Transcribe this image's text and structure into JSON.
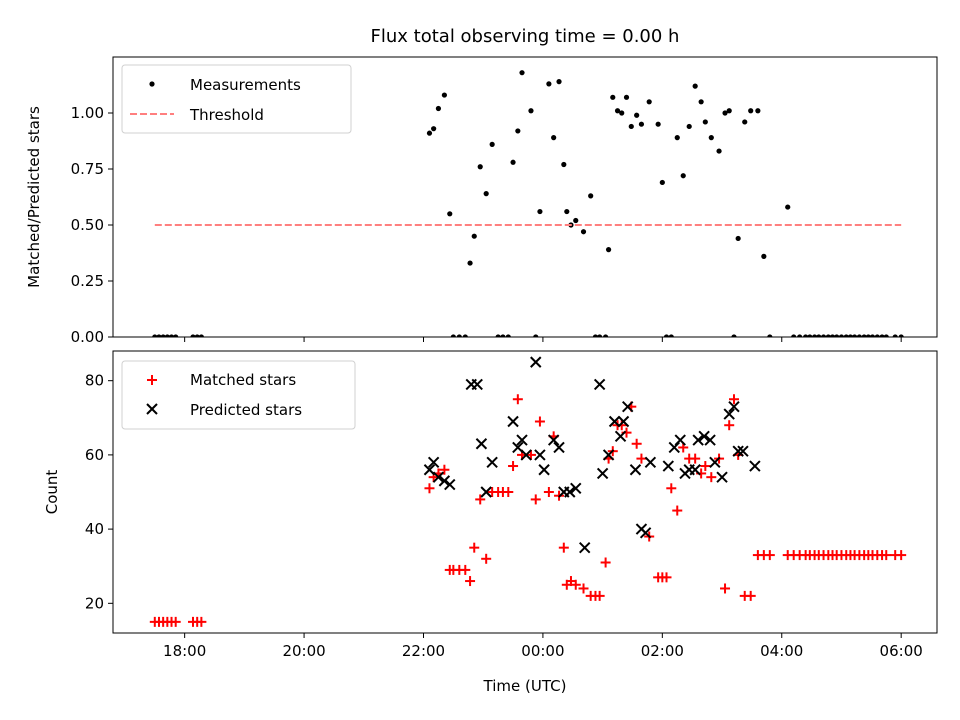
{
  "chart_data": [
    {
      "type": "scatter",
      "title": "Flux total observing time = 0.00 h",
      "xlabel": "",
      "ylabel": "Matched/Predicted stars",
      "xlim": [
        -7.2,
        6.6
      ],
      "ylim": [
        0,
        1.25
      ],
      "x_ticks": [
        -6,
        -4,
        -2,
        0,
        2,
        4,
        6
      ],
      "y_ticks": [
        {
          "value": 0,
          "label": "0.00"
        },
        {
          "value": 0.25,
          "label": "0.25"
        },
        {
          "value": 0.5,
          "label": "0.50"
        },
        {
          "value": 0.75,
          "label": "0.75"
        },
        {
          "value": 1.0,
          "label": "1.00"
        }
      ],
      "legend": "upper-left",
      "series": [
        {
          "name": "Measurements",
          "marker": "dot",
          "color": "#000000",
          "x": [
            -6.5,
            -6.43,
            -6.36,
            -6.29,
            -6.22,
            -6.15,
            -5.86,
            -5.79,
            -5.72,
            -1.9,
            -1.83,
            -1.75,
            -1.65,
            -1.56,
            -1.5,
            -1.4,
            -1.3,
            -1.22,
            -1.15,
            -1.05,
            -0.95,
            -0.85,
            -0.75,
            -0.67,
            -0.58,
            -0.5,
            -0.42,
            -0.35,
            -0.2,
            -0.12,
            -0.05,
            0.1,
            0.18,
            0.27,
            0.35,
            0.4,
            0.47,
            0.55,
            0.68,
            0.8,
            0.88,
            0.95,
            1.05,
            1.1,
            1.17,
            1.25,
            1.32,
            1.4,
            1.48,
            1.57,
            1.65,
            1.78,
            1.93,
            2.0,
            2.07,
            2.15,
            2.25,
            2.35,
            2.45,
            2.55,
            2.65,
            2.72,
            2.82,
            2.95,
            3.05,
            3.12,
            3.2,
            3.27,
            3.38,
            3.48,
            3.6,
            3.7,
            3.8,
            4.1,
            4.2,
            4.3,
            4.4,
            4.47,
            4.55,
            4.62,
            4.7,
            4.78,
            4.85,
            4.92,
            5.0,
            5.08,
            5.15,
            5.22,
            5.3,
            5.38,
            5.45,
            5.52,
            5.6,
            5.68,
            5.75,
            5.9,
            6.0
          ],
          "y": [
            0,
            0,
            0,
            0,
            0,
            0,
            0,
            0,
            0,
            0.91,
            0.93,
            1.02,
            1.08,
            0.55,
            0,
            0,
            0,
            0.33,
            0.45,
            0.76,
            0.64,
            0.86,
            0,
            0,
            0,
            0.78,
            0.92,
            1.18,
            1.01,
            0,
            0.56,
            1.13,
            0.89,
            1.14,
            0.77,
            0.56,
            0.5,
            0.52,
            0.47,
            0.63,
            0,
            0,
            0,
            0.39,
            1.07,
            1.01,
            1.0,
            1.07,
            0.94,
            0.99,
            0.95,
            1.05,
            0.95,
            0.69,
            0,
            0,
            0.89,
            0.72,
            0.94,
            1.12,
            1.05,
            0.96,
            0.89,
            0.83,
            1.0,
            1.01,
            0,
            0.44,
            0.96,
            1.01,
            1.01,
            0.36,
            0,
            0.58,
            0,
            0,
            0,
            0,
            0,
            0,
            0,
            0,
            0,
            0,
            0,
            0,
            0,
            0,
            0,
            0,
            0,
            0,
            0,
            0,
            0,
            0,
            0
          ]
        },
        {
          "name": "Threshold",
          "marker": "dashed-line",
          "color": "#ff7f7f",
          "x": [
            -6.5,
            6.0
          ],
          "y": [
            0.5,
            0.5
          ]
        }
      ]
    },
    {
      "type": "scatter",
      "title": "",
      "xlabel": "Time (UTC)",
      "ylabel": "Count",
      "xlim": [
        -7.2,
        6.6
      ],
      "ylim": [
        12,
        88
      ],
      "x_ticks": [
        {
          "value": -6,
          "label": "18:00"
        },
        {
          "value": -4,
          "label": "20:00"
        },
        {
          "value": -2,
          "label": "22:00"
        },
        {
          "value": 0,
          "label": "00:00"
        },
        {
          "value": 2,
          "label": "02:00"
        },
        {
          "value": 4,
          "label": "04:00"
        },
        {
          "value": 6,
          "label": "06:00"
        }
      ],
      "y_ticks": [
        {
          "value": 20,
          "label": "20"
        },
        {
          "value": 40,
          "label": "40"
        },
        {
          "value": 60,
          "label": "60"
        },
        {
          "value": 80,
          "label": "80"
        }
      ],
      "legend": "upper-left",
      "series": [
        {
          "name": "Matched stars",
          "marker": "plus",
          "color": "#ff0000",
          "x": [
            -6.5,
            -6.43,
            -6.36,
            -6.29,
            -6.22,
            -6.15,
            -5.86,
            -5.79,
            -5.72,
            -1.9,
            -1.83,
            -1.75,
            -1.65,
            -1.56,
            -1.5,
            -1.4,
            -1.3,
            -1.22,
            -1.15,
            -1.05,
            -0.95,
            -0.85,
            -0.75,
            -0.67,
            -0.58,
            -0.5,
            -0.42,
            -0.35,
            -0.2,
            -0.12,
            -0.05,
            0.1,
            0.18,
            0.27,
            0.35,
            0.4,
            0.47,
            0.55,
            0.68,
            0.8,
            0.88,
            0.95,
            1.05,
            1.1,
            1.17,
            1.25,
            1.32,
            1.4,
            1.48,
            1.57,
            1.65,
            1.78,
            1.93,
            2.0,
            2.07,
            2.15,
            2.25,
            2.35,
            2.45,
            2.55,
            2.65,
            2.72,
            2.82,
            2.95,
            3.05,
            3.12,
            3.2,
            3.27,
            3.38,
            3.48,
            3.6,
            3.7,
            3.8,
            4.1,
            4.2,
            4.3,
            4.4,
            4.47,
            4.55,
            4.62,
            4.7,
            4.78,
            4.85,
            4.92,
            5.0,
            5.08,
            5.15,
            5.22,
            5.3,
            5.38,
            5.45,
            5.52,
            5.6,
            5.68,
            5.75,
            5.9,
            6.0
          ],
          "y": [
            15,
            15,
            15,
            15,
            15,
            15,
            15,
            15,
            15,
            51,
            54,
            55,
            56,
            29,
            29,
            29,
            29,
            26,
            35,
            48,
            32,
            50,
            50,
            50,
            50,
            57,
            75,
            60,
            60,
            48,
            69,
            50,
            65,
            49,
            35,
            25,
            26,
            25,
            24,
            22,
            22,
            22,
            31,
            59,
            61,
            68,
            68,
            66,
            73,
            63,
            59,
            38,
            27,
            27,
            27,
            51,
            45,
            62,
            59,
            59,
            55,
            57,
            54,
            59,
            24,
            68,
            75,
            60,
            22,
            22,
            33,
            33,
            33,
            33,
            33,
            33,
            33,
            33,
            33,
            33,
            33,
            33,
            33,
            33,
            33,
            33,
            33,
            33,
            33,
            33,
            33,
            33,
            33,
            33,
            33,
            33,
            33
          ]
        },
        {
          "name": "Predicted stars",
          "marker": "x",
          "color": "#000000",
          "x": [
            -1.9,
            -1.83,
            -1.75,
            -1.65,
            -1.56,
            -1.2,
            -1.1,
            -1.03,
            -0.95,
            -0.85,
            -0.5,
            -0.42,
            -0.35,
            -0.28,
            -0.12,
            -0.05,
            0.02,
            0.18,
            0.27,
            0.35,
            0.45,
            0.55,
            0.7,
            0.95,
            1.0,
            1.1,
            1.2,
            1.3,
            1.35,
            1.42,
            1.55,
            1.65,
            1.72,
            1.8,
            2.1,
            2.2,
            2.3,
            2.38,
            2.45,
            2.55,
            2.6,
            2.7,
            2.8,
            2.88,
            3.0,
            3.12,
            3.2,
            3.27,
            3.35,
            3.55
          ],
          "y": [
            56,
            58,
            54,
            53,
            52,
            79,
            79,
            63,
            50,
            58,
            69,
            62,
            64,
            60,
            85,
            60,
            56,
            64,
            62,
            50,
            50,
            51,
            35,
            79,
            55,
            60,
            69,
            65,
            69,
            73,
            56,
            40,
            39,
            58,
            57,
            62,
            64,
            55,
            56,
            56,
            64,
            65,
            64,
            58,
            54,
            71,
            73,
            61,
            61,
            57
          ]
        }
      ]
    }
  ]
}
